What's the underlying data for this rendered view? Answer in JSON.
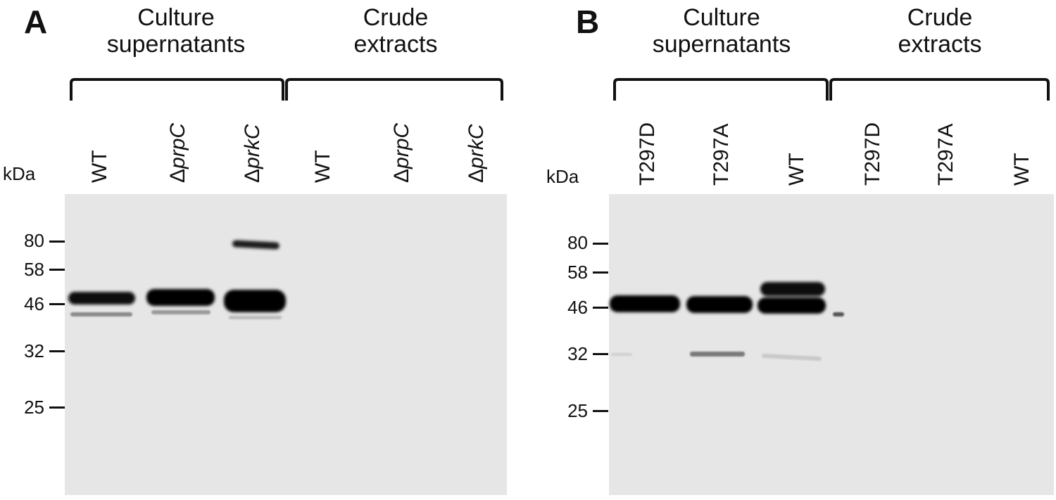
{
  "panels": [
    {
      "letter": "A",
      "groups": [
        {
          "lines": [
            "Culture",
            "supernatants"
          ]
        },
        {
          "lines": [
            "Crude",
            "extracts"
          ]
        }
      ],
      "unit": "kDa",
      "lanes": [
        {
          "prefix": "",
          "italic": "",
          "text": "WT"
        },
        {
          "prefix": "Δ",
          "italic": "prpC",
          "text": ""
        },
        {
          "prefix": "Δ",
          "italic": "prkC",
          "text": ""
        },
        {
          "prefix": "",
          "italic": "",
          "text": "WT"
        },
        {
          "prefix": "Δ",
          "italic": "prpC",
          "text": ""
        },
        {
          "prefix": "Δ",
          "italic": "prkC",
          "text": ""
        }
      ],
      "markers": [
        "80",
        "58",
        "46",
        "32",
        "25"
      ]
    },
    {
      "letter": "B",
      "groups": [
        {
          "lines": [
            "Culture",
            "supernatants"
          ]
        },
        {
          "lines": [
            "Crude",
            "extracts"
          ]
        }
      ],
      "unit": "kDa",
      "lanes": [
        {
          "prefix": "",
          "italic": "",
          "text": "T297D"
        },
        {
          "prefix": "",
          "italic": "",
          "text": "T297A"
        },
        {
          "prefix": "",
          "italic": "",
          "text": "WT"
        },
        {
          "prefix": "",
          "italic": "",
          "text": "T297D"
        },
        {
          "prefix": "",
          "italic": "",
          "text": "T297A"
        },
        {
          "prefix": "",
          "italic": "",
          "text": "WT"
        }
      ],
      "markers": [
        "80",
        "58",
        "46",
        "32",
        "25"
      ]
    }
  ]
}
